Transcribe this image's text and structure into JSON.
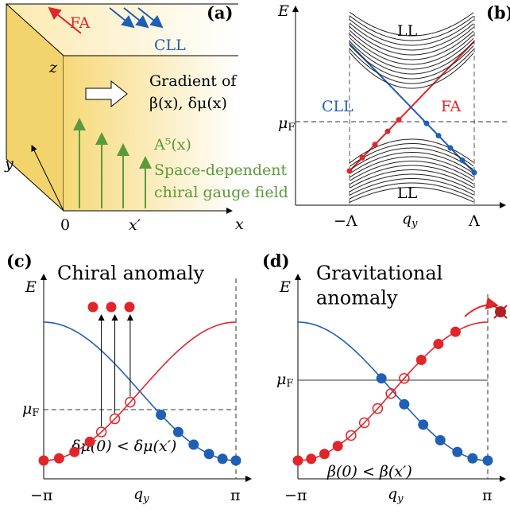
{
  "panel_a": {
    "tag": "(a)",
    "fa": "FA",
    "cll": "CLL",
    "axis_z": "z",
    "axis_y": "y",
    "axis_x": "x",
    "origin": "0",
    "x_prime": "x′",
    "gradient_line1": "Gradient of",
    "gradient_line2": "β(x), δμ(x)",
    "field": "A⁵(x)",
    "field_line1": "Space-dependent",
    "field_line2": "chiral gauge field"
  },
  "panel_b": {
    "tag": "(b)",
    "axis_e": "E",
    "ll_top": "LL",
    "ll_bottom": "LL",
    "cll": "CLL",
    "fa": "FA",
    "mu": {
      "main": "μ",
      "sub": "F"
    },
    "x_left": "−Λ",
    "x_mid": {
      "main": "q",
      "sub": "y"
    },
    "x_right": "Λ"
  },
  "panel_c": {
    "tag": "(c)",
    "title": "Chiral anomaly",
    "axis_e": "E",
    "mu": {
      "main": "μ",
      "sub": "F"
    },
    "relation": "δμ(0) < δμ(x′)",
    "x_left": "−π",
    "x_mid": {
      "main": "q",
      "sub": "y"
    },
    "x_right": "π"
  },
  "panel_d": {
    "tag": "(d)",
    "title_line1": "Gravitational",
    "title_line2": "anomaly",
    "axis_e": "E",
    "mu": {
      "main": "μ",
      "sub": "F"
    },
    "relation": "β(0) < β(x′)",
    "x_left": "−π",
    "x_mid": {
      "main": "q",
      "sub": "y"
    },
    "x_right": "π"
  }
}
